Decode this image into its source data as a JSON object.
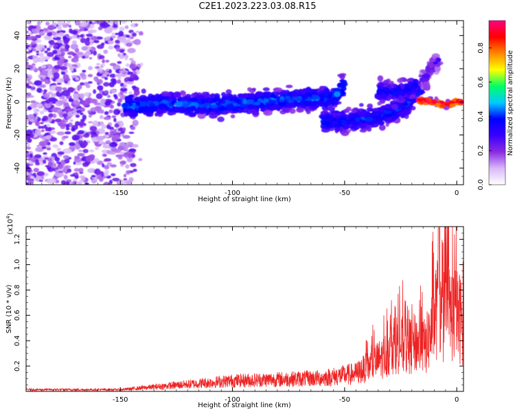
{
  "title": "C2E1.2023.223.03.08.R15",
  "chart_data": [
    {
      "type": "heatmap",
      "name": "spectrogram",
      "xlabel": "Height of straight line (km)",
      "ylabel": "Frequency (Hz)",
      "xlim": [
        -192,
        3
      ],
      "ylim": [
        -50,
        49
      ],
      "xticks": [
        "-150",
        "-100",
        "-50",
        "0"
      ],
      "yticks": [
        "-40",
        "-20",
        "0",
        "20",
        "40"
      ],
      "colorbar": {
        "label": "Normalized spectral amplitude",
        "range": [
          0.0,
          0.96
        ],
        "ticks": [
          "0.0",
          "0.2",
          "0.4",
          "0.6",
          "0.8"
        ],
        "colors": [
          "#ffffff",
          "#d8b8f8",
          "#8a2be2",
          "#3a00ff",
          "#0000ff",
          "#00ccff",
          "#00ff66",
          "#ffff00",
          "#ff8800",
          "#ff0000",
          "#ff0080"
        ]
      },
      "noise_region_x": [
        -192,
        -145
      ],
      "ridges": [
        {
          "x": [
            -148,
            -130,
            -110,
            -90,
            -70,
            -55,
            -50
          ],
          "y": [
            -3,
            -1,
            -2,
            0,
            2,
            2,
            10
          ],
          "intensity": 0.28
        },
        {
          "x": [
            -60,
            -45,
            -35,
            -25,
            -20,
            -15
          ],
          "y": [
            -12,
            -11,
            -9,
            -4,
            2,
            10
          ],
          "intensity": 0.25
        },
        {
          "x": [
            -35,
            -25,
            -18
          ],
          "y": [
            6,
            6,
            10
          ],
          "intensity": 0.22
        },
        {
          "x": [
            -17,
            -10,
            -5,
            0,
            2
          ],
          "y": [
            1,
            0,
            -2,
            0,
            0
          ],
          "intensity": 0.8
        },
        {
          "x": [
            -16,
            -8
          ],
          "y": [
            12,
            26
          ],
          "intensity": 0.12
        }
      ]
    },
    {
      "type": "line",
      "name": "snr",
      "xlabel": "Height of straight line (km)",
      "ylabel": "SNR (10 * v/v)",
      "multiplier_label": "(x10",
      "multiplier_exp": "4",
      "multiplier_close": ")",
      "xlim": [
        -192,
        3
      ],
      "ylim": [
        0,
        1.3
      ],
      "xticks": [
        "-150",
        "-100",
        "-50",
        "0"
      ],
      "yticks": [
        "0.2",
        "0.4",
        "0.6",
        "0.8",
        "1.0",
        "1.2"
      ],
      "color": "#ee2222",
      "envelope": {
        "x": [
          -192,
          -150,
          -140,
          -130,
          -100,
          -60,
          -45,
          -38,
          -32,
          -28,
          -22,
          -18,
          -14,
          -11,
          -9,
          -7,
          -4,
          0,
          3
        ],
        "y": [
          0.02,
          0.02,
          0.04,
          0.06,
          0.12,
          0.15,
          0.2,
          0.3,
          0.4,
          0.55,
          0.5,
          0.55,
          0.5,
          0.7,
          0.95,
          0.8,
          0.9,
          0.85,
          0.8
        ]
      }
    }
  ]
}
